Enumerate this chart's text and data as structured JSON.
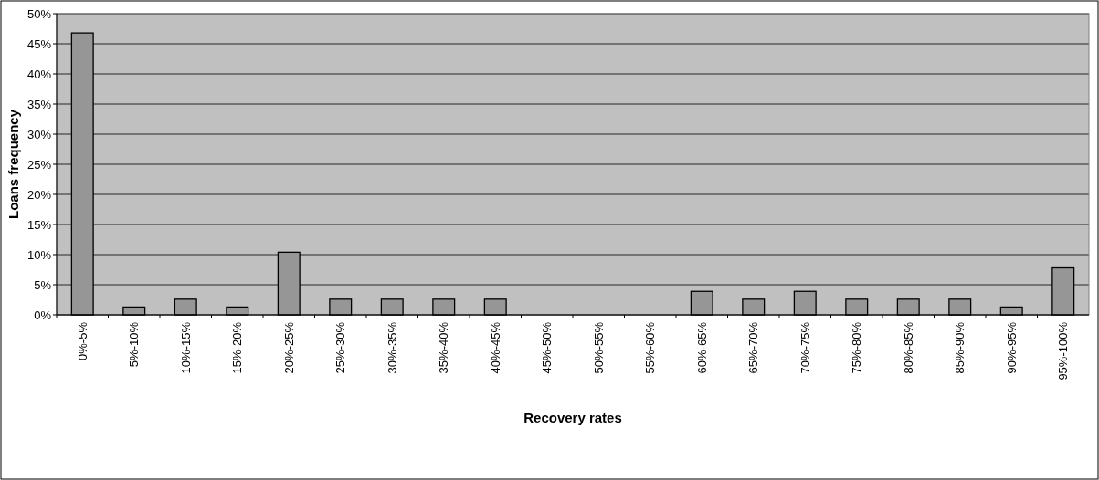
{
  "chart_data": {
    "type": "bar",
    "xlabel": "Recovery rates",
    "ylabel": "Loans frequency",
    "categories": [
      "0%-5%",
      "5%-10%",
      "10%-15%",
      "15%-20%",
      "20%-25%",
      "25%-30%",
      "30%-35%",
      "35%-40%",
      "40%-45%",
      "45%-50%",
      "50%-55%",
      "55%-60%",
      "60%-65%",
      "65%-70%",
      "70%-75%",
      "75%-80%",
      "80%-85%",
      "85%-90%",
      "90%-95%",
      "95%-100%"
    ],
    "values": [
      46.8,
      1.3,
      2.6,
      1.3,
      10.4,
      2.6,
      2.6,
      2.6,
      2.6,
      0,
      0,
      0,
      3.9,
      2.6,
      3.9,
      2.6,
      2.6,
      2.6,
      1.3,
      7.8
    ],
    "color": "#969696",
    "ylim": [
      0,
      50
    ],
    "yticks": [
      {
        "value": 0,
        "label": "0%"
      },
      {
        "value": 5,
        "label": "5%"
      },
      {
        "value": 10,
        "label": "10%"
      },
      {
        "value": 15,
        "label": "15%"
      },
      {
        "value": 20,
        "label": "20%"
      },
      {
        "value": 25,
        "label": "25%"
      },
      {
        "value": 30,
        "label": "30%"
      },
      {
        "value": 35,
        "label": "35%"
      },
      {
        "value": 40,
        "label": "40%"
      },
      {
        "value": 45,
        "label": "45%"
      },
      {
        "value": 50,
        "label": "50%"
      }
    ],
    "grid": "y"
  }
}
